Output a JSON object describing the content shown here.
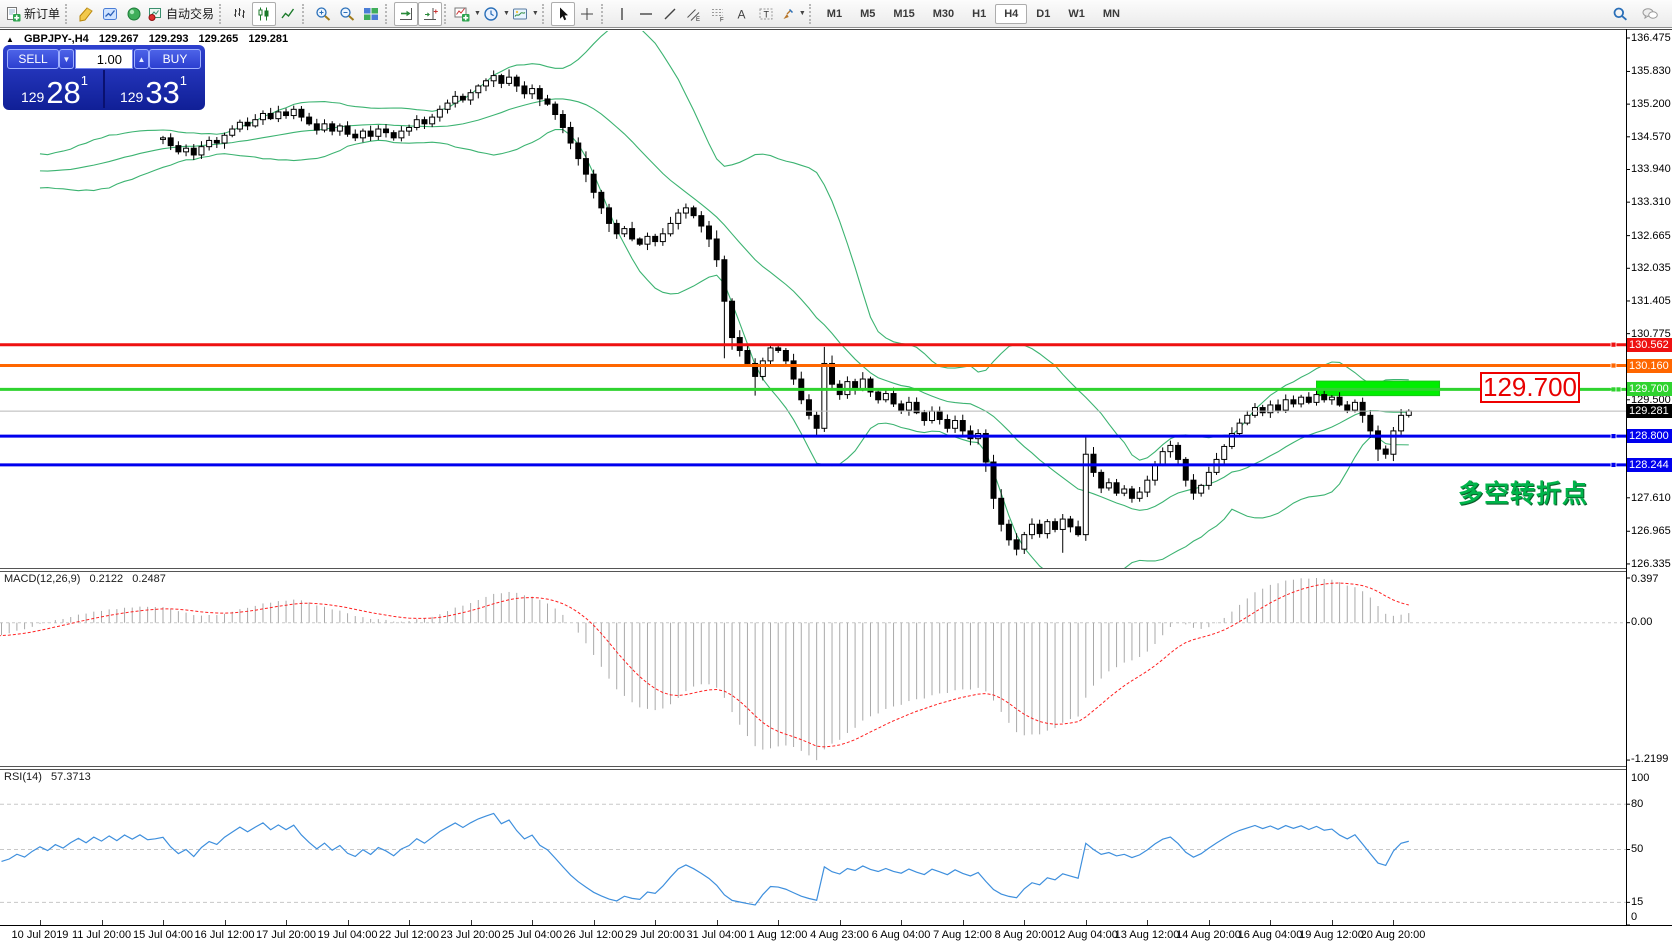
{
  "toolbar": {
    "groups": [
      {
        "name": "orders",
        "items": [
          {
            "name": "new-order",
            "label": "新订单"
          }
        ]
      },
      {
        "name": "windows",
        "items": [
          {
            "name": "metaeditor"
          },
          {
            "name": "market-watch"
          },
          {
            "name": "navigator"
          },
          {
            "name": "autotrading",
            "label": "自动交易"
          }
        ]
      },
      {
        "name": "chart-type",
        "items": [
          {
            "name": "bar-chart"
          },
          {
            "name": "candlestick-chart",
            "active": true
          },
          {
            "name": "line-chart"
          }
        ]
      },
      {
        "name": "zoom",
        "items": [
          {
            "name": "zoom-in"
          },
          {
            "name": "zoom-out"
          },
          {
            "name": "tile-windows"
          }
        ]
      },
      {
        "name": "scroll",
        "items": [
          {
            "name": "auto-scroll",
            "active": true
          },
          {
            "name": "chart-shift",
            "active": true
          }
        ]
      },
      {
        "name": "chart-tools",
        "items": [
          {
            "name": "indicators",
            "dropdown": true
          },
          {
            "name": "periods",
            "dropdown": true
          },
          {
            "name": "templates",
            "dropdown": true
          }
        ]
      },
      {
        "name": "pointer",
        "items": [
          {
            "name": "cursor",
            "active": true
          },
          {
            "name": "crosshair"
          }
        ]
      },
      {
        "name": "objects",
        "items": [
          {
            "name": "vertical-line"
          },
          {
            "name": "horizontal-line"
          },
          {
            "name": "trendline"
          },
          {
            "name": "equidistant-channel"
          },
          {
            "name": "fibonacci-retracement"
          },
          {
            "name": "text"
          },
          {
            "name": "text-label"
          },
          {
            "name": "arrows",
            "dropdown": true
          }
        ]
      }
    ],
    "timeframes": {
      "options": [
        "M1",
        "M5",
        "M15",
        "M30",
        "H1",
        "H4",
        "D1",
        "W1",
        "MN"
      ],
      "active": "H4"
    },
    "right_items": [
      {
        "name": "search"
      },
      {
        "name": "chat"
      }
    ]
  },
  "symbol_header": {
    "marker": "▲",
    "symbol": "GBPJPY-,H4",
    "open": "129.267",
    "high": "129.293",
    "low": "129.265",
    "close": "129.281"
  },
  "trade_panel": {
    "sell_label": "SELL",
    "buy_label": "BUY",
    "volume": "1.00",
    "spin_down": "▼",
    "spin_up": "▲",
    "bid": {
      "prefix": "129",
      "big": "28",
      "sup": "1"
    },
    "ask": {
      "prefix": "129",
      "big": "33",
      "sup": "1"
    }
  },
  "price_axis": {
    "ticks": [
      "136.475",
      "135.830",
      "135.200",
      "134.570",
      "133.940",
      "133.310",
      "132.665",
      "132.035",
      "131.405",
      "130.775",
      "129.500",
      "127.610",
      "126.965",
      "126.335"
    ]
  },
  "levels": [
    {
      "price": 130.562,
      "label": "130.562",
      "color": "#ee1111"
    },
    {
      "price": 130.16,
      "label": "130.160",
      "color": "#ff6600"
    },
    {
      "price": 129.7,
      "label": "129.700",
      "color": "#2fd32f"
    },
    {
      "price": 128.8,
      "label": "128.800",
      "color": "#0000ee"
    },
    {
      "price": 128.244,
      "label": "128.244",
      "color": "#0000ee"
    }
  ],
  "current_price": {
    "value": 129.281,
    "label": "129.281",
    "badge_bg": "#000000",
    "line_color": "#b8b8b8"
  },
  "green_zone": {
    "bar_start": 150,
    "bar_end": 166,
    "price_high": 129.86,
    "price_low": 129.58,
    "color": "#00ee00"
  },
  "annotations": {
    "price_callout": {
      "text": "129.700",
      "price": 129.7,
      "color": "#ee0000"
    },
    "turning_point": {
      "text": "多空转折点",
      "color": "#00b44a"
    }
  },
  "macd": {
    "name": "MACD(12,26,9)",
    "value": "0.2122",
    "signal_value": "0.2487",
    "axis": {
      "max": "0.397",
      "zero": "0.00",
      "min": "-1.2199"
    },
    "histogram_color": "#a9a9a9",
    "signal_color": "#ff2222"
  },
  "rsi": {
    "name": "RSI(14)",
    "value": "57.3713",
    "axis_top": "100",
    "axis_bottom": "0",
    "levels": [
      "80",
      "50",
      "15"
    ],
    "line_color": "#3e8fdd"
  },
  "time_axis": {
    "labels": [
      "10 Jul 2019",
      "11 Jul 20:00",
      "15 Jul 04:00",
      "16 Jul 12:00",
      "17 Jul 20:00",
      "19 Jul 04:00",
      "22 Jul 12:00",
      "23 Jul 20:00",
      "25 Jul 04:00",
      "26 Jul 12:00",
      "29 Jul 20:00",
      "31 Jul 04:00",
      "1 Aug 12:00",
      "4 Aug 23:00",
      "6 Aug 04:00",
      "7 Aug 12:00",
      "8 Aug 20:00",
      "12 Aug 04:00",
      "13 Aug 12:00",
      "14 Aug 20:00",
      "16 Aug 04:00",
      "19 Aug 12:00",
      "20 Aug 20:00"
    ]
  },
  "chart_data": {
    "type": "candlestick",
    "symbol": "GBPJPY-",
    "timeframe": "H4",
    "visible_price_range": [
      126.335,
      136.475
    ],
    "bollinger": {
      "period": 20,
      "deviation": 2,
      "color": "#3CB371"
    },
    "pre_closes": [
      134.2,
      134.05,
      133.95,
      134.1,
      133.85,
      133.75,
      133.9,
      133.7,
      133.8,
      133.6,
      133.7,
      133.85,
      133.75,
      133.88,
      133.9,
      133.95,
      134.05,
      133.98,
      134.1,
      134.2,
      134.12,
      134.25,
      134.18,
      134.3,
      134.4,
      134.32,
      134.45,
      134.38,
      134.5,
      134.42,
      134.55,
      134.48,
      134.58,
      134.5,
      134.52
    ],
    "closes": [
      134.55,
      134.4,
      134.28,
      134.35,
      134.22,
      134.38,
      134.5,
      134.45,
      134.6,
      134.72,
      134.85,
      134.78,
      134.9,
      135.02,
      134.92,
      135.05,
      134.98,
      135.1,
      134.95,
      134.82,
      134.7,
      134.82,
      134.68,
      134.78,
      134.62,
      134.55,
      134.68,
      134.58,
      134.72,
      134.65,
      134.55,
      134.68,
      134.75,
      134.9,
      134.82,
      134.95,
      135.1,
      135.22,
      135.35,
      135.28,
      135.42,
      135.55,
      135.65,
      135.75,
      135.6,
      135.72,
      135.55,
      135.4,
      135.5,
      135.3,
      135.2,
      135.0,
      134.75,
      134.45,
      134.15,
      133.85,
      133.5,
      133.2,
      132.9,
      132.7,
      132.8,
      132.6,
      132.5,
      132.65,
      132.55,
      132.7,
      132.9,
      133.1,
      133.2,
      133.05,
      132.85,
      132.6,
      132.2,
      131.4,
      130.7,
      130.45,
      130.2,
      129.95,
      130.25,
      130.5,
      130.45,
      130.25,
      129.9,
      129.5,
      129.2,
      128.95,
      130.2,
      129.8,
      129.6,
      129.85,
      129.7,
      129.9,
      129.65,
      129.5,
      129.62,
      129.42,
      129.3,
      129.45,
      129.25,
      129.1,
      129.28,
      129.12,
      128.95,
      129.1,
      128.9,
      128.75,
      128.85,
      128.3,
      127.6,
      127.1,
      126.8,
      126.62,
      126.9,
      127.1,
      126.92,
      127.15,
      127.0,
      127.2,
      127.05,
      126.9,
      128.45,
      128.1,
      127.8,
      127.9,
      127.7,
      127.78,
      127.6,
      127.72,
      127.95,
      128.25,
      128.5,
      128.62,
      128.35,
      127.95,
      127.7,
      127.85,
      128.1,
      128.35,
      128.6,
      128.85,
      129.05,
      129.2,
      129.35,
      129.25,
      129.4,
      129.3,
      129.5,
      129.42,
      129.55,
      129.45,
      129.6,
      129.5,
      129.55,
      129.4,
      129.3,
      129.45,
      129.2,
      128.9,
      128.55,
      128.45,
      128.9,
      129.2,
      129.281
    ],
    "wick_overrides": {
      "43": {
        "h": 135.85
      },
      "45": {
        "h": 135.87
      },
      "73": {
        "l": 130.3
      },
      "77": {
        "l": 129.58
      },
      "86": {
        "h": 130.52,
        "l": 128.88
      },
      "111": {
        "l": 126.5
      },
      "117": {
        "l": 126.55
      },
      "120": {
        "h": 128.8,
        "l": 126.78
      },
      "158": {
        "l": 128.32
      }
    },
    "last_ohlc": {
      "open": 129.267,
      "high": 129.293,
      "low": 129.265,
      "close": 129.281
    }
  }
}
